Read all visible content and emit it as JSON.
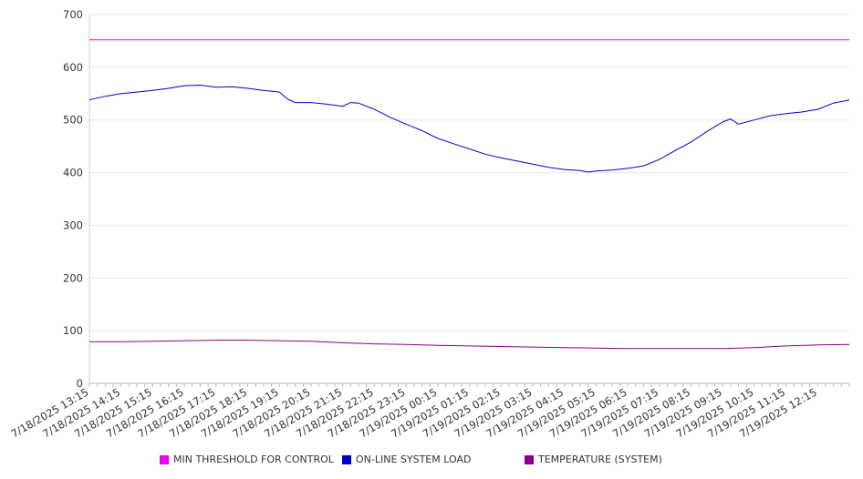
{
  "chart_data": {
    "type": "line",
    "title": "",
    "xlabel": "",
    "ylabel": "",
    "ylim": [
      0,
      700
    ],
    "y_ticks": [
      0,
      100,
      200,
      300,
      400,
      500,
      600,
      700
    ],
    "x_tick_labels": [
      "7/18/2025 13:15",
      "7/18/2025 14:15",
      "7/18/2025 15:15",
      "7/18/2025 16:15",
      "7/18/2025 17:15",
      "7/18/2025 18:15",
      "7/18/2025 19:15",
      "7/18/2025 20:15",
      "7/18/2025 21:15",
      "7/18/2025 22:15",
      "7/18/2025 23:15",
      "7/19/2025 00:15",
      "7/19/2025 01:15",
      "7/19/2025 02:15",
      "7/19/2025 03:15",
      "7/19/2025 04:15",
      "7/19/2025 05:15",
      "7/19/2025 06:15",
      "7/19/2025 07:15",
      "7/19/2025 08:15",
      "7/19/2025 09:15",
      "7/19/2025 10:15",
      "7/19/2025 11:15",
      "7/19/2025 12:15"
    ],
    "x_range": [
      "7/18/2025 13:15",
      "7/19/2025 13:15"
    ],
    "grid": "horizontal",
    "legend_position": "bottom",
    "series": [
      {
        "name": "MIN THRESHOLD FOR CONTROL",
        "color": "#ee00ee",
        "x": [
          "7/18/2025 13:15",
          "7/19/2025 13:15"
        ],
        "values": [
          652,
          652
        ]
      },
      {
        "name": "ON-LINE SYSTEM LOAD",
        "color": "#0000cc",
        "x": [
          "7/18/2025 13:15",
          "7/18/2025 13:45",
          "7/18/2025 14:15",
          "7/18/2025 14:45",
          "7/18/2025 15:15",
          "7/18/2025 15:45",
          "7/18/2025 16:15",
          "7/18/2025 16:45",
          "7/18/2025 17:15",
          "7/18/2025 17:45",
          "7/18/2025 18:15",
          "7/18/2025 18:45",
          "7/18/2025 19:15",
          "7/18/2025 19:30",
          "7/18/2025 19:45",
          "7/18/2025 20:15",
          "7/18/2025 20:45",
          "7/18/2025 21:15",
          "7/18/2025 21:30",
          "7/18/2025 21:45",
          "7/18/2025 22:15",
          "7/18/2025 22:45",
          "7/18/2025 23:15",
          "7/18/2025 23:45",
          "7/19/2025 00:15",
          "7/19/2025 00:45",
          "7/19/2025 01:15",
          "7/19/2025 01:45",
          "7/19/2025 02:15",
          "7/19/2025 02:45",
          "7/19/2025 03:15",
          "7/19/2025 03:45",
          "7/19/2025 04:15",
          "7/19/2025 04:45",
          "7/19/2025 05:00",
          "7/19/2025 05:15",
          "7/19/2025 05:45",
          "7/19/2025 06:15",
          "7/19/2025 06:45",
          "7/19/2025 07:15",
          "7/19/2025 07:45",
          "7/19/2025 08:15",
          "7/19/2025 08:45",
          "7/19/2025 09:15",
          "7/19/2025 09:30",
          "7/19/2025 09:45",
          "7/19/2025 10:15",
          "7/19/2025 10:45",
          "7/19/2025 11:15",
          "7/19/2025 11:45",
          "7/19/2025 12:15",
          "7/19/2025 12:45",
          "7/19/2025 13:15"
        ],
        "values": [
          538,
          545,
          550,
          553,
          556,
          560,
          565,
          566,
          562,
          563,
          560,
          556,
          553,
          540,
          533,
          533,
          530,
          526,
          533,
          532,
          520,
          505,
          492,
          480,
          465,
          455,
          445,
          435,
          428,
          422,
          416,
          410,
          406,
          404,
          401,
          403,
          405,
          408,
          413,
          425,
          442,
          458,
          478,
          496,
          502,
          492,
          500,
          508,
          512,
          515,
          520,
          532,
          538
        ]
      },
      {
        "name": "TEMPERATURE (SYSTEM)",
        "color": "#880088",
        "x": [
          "7/18/2025 13:15",
          "7/18/2025 14:15",
          "7/18/2025 15:15",
          "7/18/2025 16:15",
          "7/18/2025 17:15",
          "7/18/2025 18:15",
          "7/18/2025 19:15",
          "7/18/2025 20:15",
          "7/18/2025 21:15",
          "7/18/2025 22:15",
          "7/18/2025 23:15",
          "7/19/2025 00:15",
          "7/19/2025 01:15",
          "7/19/2025 02:15",
          "7/19/2025 03:15",
          "7/19/2025 04:15",
          "7/19/2025 05:15",
          "7/19/2025 06:15",
          "7/19/2025 07:15",
          "7/19/2025 08:15",
          "7/19/2025 09:15",
          "7/19/2025 10:15",
          "7/19/2025 11:15",
          "7/19/2025 12:15",
          "7/19/2025 13:15"
        ],
        "values": [
          79,
          79,
          80,
          81,
          82,
          82,
          81,
          80,
          77,
          75,
          74,
          72,
          71,
          70,
          69,
          68,
          67,
          66,
          66,
          66,
          66,
          68,
          71,
          73,
          74
        ]
      }
    ]
  }
}
